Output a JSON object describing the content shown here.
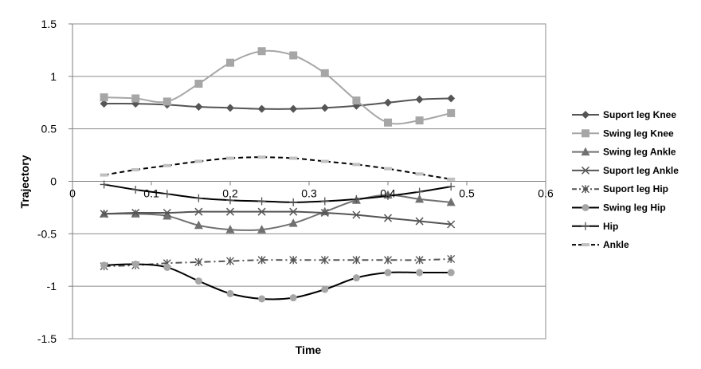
{
  "chart_data": {
    "type": "line",
    "xlabel": "Time",
    "ylabel": "Trajectory",
    "xlim": [
      0,
      0.6
    ],
    "ylim": [
      -1.5,
      1.5
    ],
    "x_ticks": [
      "0",
      "0.1",
      "0.2",
      "0.3",
      "0.4",
      "0.5",
      "0.6"
    ],
    "y_ticks": [
      "1.5",
      "1",
      "0.5",
      "0",
      "-0.5",
      "-1",
      "-1.5"
    ],
    "grid": "horizontal",
    "legend_position": "right",
    "x": [
      0.04,
      0.08,
      0.12,
      0.16,
      0.2,
      0.24,
      0.28,
      0.32,
      0.36,
      0.4,
      0.44,
      0.48
    ],
    "series": [
      {
        "name": "Suport leg Knee",
        "marker": "diamond",
        "color": "#555555",
        "dash": "solid",
        "values": [
          0.74,
          0.74,
          0.73,
          0.71,
          0.7,
          0.69,
          0.69,
          0.7,
          0.72,
          0.75,
          0.78,
          0.79
        ]
      },
      {
        "name": "Swing leg Knee",
        "marker": "square",
        "color": "#a6a6a6",
        "dash": "solid",
        "values": [
          0.8,
          0.79,
          0.76,
          0.93,
          1.13,
          1.24,
          1.2,
          1.03,
          0.77,
          0.56,
          0.58,
          0.65
        ]
      },
      {
        "name": "Swing leg Ankle",
        "marker": "triangle",
        "color": "#707070",
        "dash": "solid",
        "values": [
          -0.31,
          -0.31,
          -0.33,
          -0.42,
          -0.46,
          -0.46,
          -0.4,
          -0.29,
          -0.18,
          -0.13,
          -0.17,
          -0.2
        ]
      },
      {
        "name": "Suport leg Ankle",
        "marker": "x",
        "color": "#555555",
        "dash": "solid",
        "values": [
          -0.31,
          -0.3,
          -0.3,
          -0.29,
          -0.29,
          -0.29,
          -0.29,
          -0.3,
          -0.32,
          -0.35,
          -0.38,
          -0.41
        ]
      },
      {
        "name": "Suport leg Hip",
        "marker": "star",
        "color": "#555555",
        "dash": "dashdot",
        "values": [
          -0.81,
          -0.8,
          -0.78,
          -0.77,
          -0.76,
          -0.75,
          -0.75,
          -0.75,
          -0.75,
          -0.75,
          -0.75,
          -0.74
        ]
      },
      {
        "name": "Swing leg Hip",
        "marker": "circle",
        "color": "#a6a6a6",
        "line_color": "#000000",
        "dash": "solid",
        "values": [
          -0.8,
          -0.79,
          -0.82,
          -0.95,
          -1.07,
          -1.12,
          -1.11,
          -1.03,
          -0.92,
          -0.87,
          -0.87,
          -0.87
        ]
      },
      {
        "name": "Hip",
        "marker": "plus",
        "color": "#555555",
        "line_color": "#000000",
        "dash": "solid",
        "values": [
          -0.03,
          -0.08,
          -0.12,
          -0.16,
          -0.18,
          -0.19,
          -0.2,
          -0.19,
          -0.17,
          -0.14,
          -0.1,
          -0.05
        ]
      },
      {
        "name": "Ankle",
        "marker": "dash",
        "color": "#c0c0c0",
        "line_color": "#000000",
        "dash": "dashed",
        "values": [
          0.06,
          0.11,
          0.15,
          0.19,
          0.22,
          0.23,
          0.22,
          0.19,
          0.16,
          0.12,
          0.07,
          0.02
        ]
      }
    ]
  }
}
